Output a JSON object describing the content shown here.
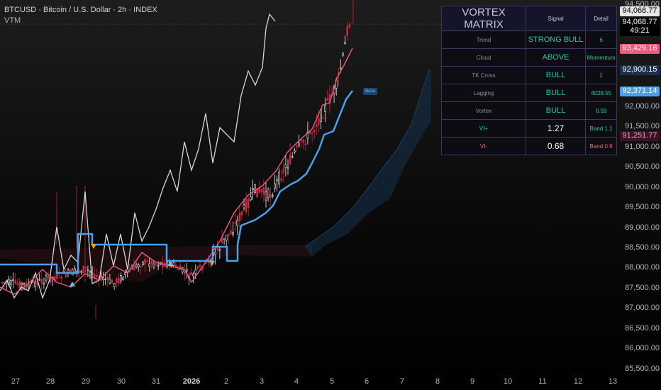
{
  "header": {
    "symbol_line": "BTCUSD · Bitcoin / U.S. Dollar · 2h · INDEX",
    "indicator": "VTM"
  },
  "price_axis": {
    "labels": [
      "94,500.00",
      "92,000.00",
      "91,500.00",
      "91,000.00",
      "90,500.00",
      "90,000.00",
      "89,500.00",
      "89,000.00",
      "88,500.00",
      "88,000.00",
      "87,500.00",
      "87,000.00",
      "86,500.00",
      "86,000.00",
      "85,500.00"
    ],
    "tags": [
      {
        "text": "94,068.77",
        "bg": "#e6e6e6",
        "fg": "#000000"
      },
      {
        "text": "94,068.77",
        "bg": "#000000",
        "fg": "#ffffff"
      },
      {
        "text": "49:21",
        "bg": "#000000",
        "fg": "#ffffff"
      },
      {
        "text": "93,429.16",
        "bg": "#f05a7a",
        "fg": "#ffffff"
      },
      {
        "text": "92,900.15",
        "bg": "#1b2f4e",
        "fg": "#ffffff"
      },
      {
        "text": "92,371.14",
        "bg": "#4aa0f0",
        "fg": "#ffffff"
      },
      {
        "text": "91,251.77",
        "bg": "#3a1426",
        "fg": "#f0a0b0"
      }
    ]
  },
  "time_axis": {
    "labels": [
      "27",
      "28",
      "29",
      "30",
      "31",
      "2026",
      "2",
      "3",
      "4",
      "5",
      "6",
      "7",
      "8",
      "9",
      "10",
      "11",
      "12",
      "13"
    ],
    "bold_label": "2026"
  },
  "base_label": "Base",
  "matrix": {
    "title": "VORTEX MATRIX",
    "col_signal": "Signal",
    "col_detail": "Detail",
    "rows": [
      {
        "label": "Trend",
        "signal": "STRONG BULL",
        "detail": "6",
        "tone": "g"
      },
      {
        "label": "Cloud",
        "signal": "ABOVE",
        "detail": "Momentum",
        "tone": "g"
      },
      {
        "label": "TK Cross",
        "signal": "BULL",
        "detail": "1",
        "tone": "g"
      },
      {
        "label": "Lagging",
        "signal": "BULL",
        "detail": "4028.55",
        "tone": "g"
      },
      {
        "label": "Vortex",
        "signal": "BULL",
        "detail": "0.59",
        "tone": "g"
      },
      {
        "label": "VI+",
        "signal": "1.27",
        "detail": "Band 1.1",
        "tone": "g"
      },
      {
        "label": "VI-",
        "signal": "0.68",
        "detail": "Band 0.9",
        "tone": "r"
      }
    ]
  },
  "colors": {
    "bull_candle": "#f0f0f0",
    "bear_candle": "#c8283c",
    "base_line": "#4aa0f0",
    "conversion_line": "#f05a7a",
    "lagging_line": "#d6d6d6",
    "cloud": "#16324a",
    "accent": "#5a52d8"
  }
}
